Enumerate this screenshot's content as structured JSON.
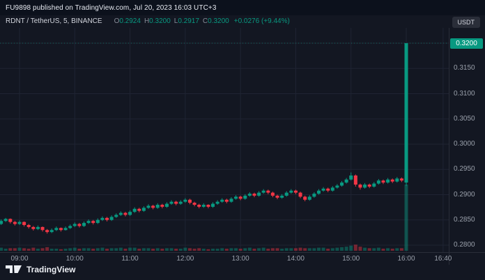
{
  "attribution": {
    "text": "FU9898 published on TradingView.com, Jul 20, 2023 16:03 UTC+3"
  },
  "legend": {
    "symbol": "RDNT / TetherUS, 5, BINANCE",
    "o_label": "O",
    "o": "0.2924",
    "h_label": "H",
    "h": "0.3200",
    "l_label": "L",
    "l": "0.2917",
    "c_label": "C",
    "c": "0.3200",
    "change": "+0.0276 (+9.44%)"
  },
  "price_axis": {
    "currency": "USDT",
    "ticks": [
      "0.3200",
      "0.3150",
      "0.3100",
      "0.3050",
      "0.3000",
      "0.2950",
      "0.2900",
      "0.2850",
      "0.2800"
    ],
    "last_price": "0.3200"
  },
  "time_axis": {
    "ticks": [
      "09:00",
      "10:00",
      "11:00",
      "12:00",
      "13:00",
      "14:00",
      "15:00",
      "16:00",
      "16:40"
    ]
  },
  "footer": {
    "logo_text": "TradingView"
  },
  "colors": {
    "up": "#089981",
    "down": "#f23645",
    "background": "#131722",
    "grid": "#1f2433",
    "axis_text": "#9aa0ab",
    "last_price_bg": "#089981",
    "badge_bg": "#2a2e39",
    "vol_up": "rgba(8,153,129,0.45)",
    "vol_down": "rgba(242,54,69,0.45)"
  },
  "chart_data": {
    "type": "candlestick",
    "title": "RDNT / TetherUS, 5, BINANCE",
    "exchange": "BINANCE",
    "interval_minutes": 5,
    "quote_currency": "USDT",
    "x_range": [
      "08:40",
      "16:40"
    ],
    "y_range": [
      0.2786,
      0.323
    ],
    "price_gridlines": [
      0.32,
      0.315,
      0.31,
      0.305,
      0.3,
      0.295,
      0.29,
      0.285,
      0.28
    ],
    "time_gridlines": [
      "09:00",
      "10:00",
      "11:00",
      "12:00",
      "13:00",
      "14:00",
      "15:00",
      "16:00",
      "16:40"
    ],
    "last_price": 0.32,
    "last_candle": {
      "o": 0.2924,
      "h": 0.32,
      "l": 0.2917,
      "c": 0.32,
      "change": 0.0276,
      "change_pct": 9.44
    },
    "candles": [
      [
        "08:40",
        0.2842,
        0.2851,
        0.284,
        0.2848,
        6
      ],
      [
        "08:45",
        0.2848,
        0.2854,
        0.2846,
        0.2852,
        4
      ],
      [
        "08:50",
        0.2852,
        0.2853,
        0.2843,
        0.2846,
        5
      ],
      [
        "08:55",
        0.2846,
        0.2848,
        0.2839,
        0.2842,
        5
      ],
      [
        "09:00",
        0.2842,
        0.2849,
        0.284,
        0.2846,
        6
      ],
      [
        "09:05",
        0.2846,
        0.2847,
        0.2837,
        0.284,
        5
      ],
      [
        "09:10",
        0.284,
        0.2842,
        0.2833,
        0.2836,
        4
      ],
      [
        "09:15",
        0.2836,
        0.2838,
        0.2829,
        0.2832,
        6
      ],
      [
        "09:20",
        0.2832,
        0.2839,
        0.283,
        0.2836,
        4
      ],
      [
        "09:25",
        0.2836,
        0.2837,
        0.2827,
        0.283,
        5
      ],
      [
        "09:30",
        0.283,
        0.2832,
        0.2823,
        0.2826,
        7
      ],
      [
        "09:35",
        0.2826,
        0.2833,
        0.2824,
        0.283,
        4
      ],
      [
        "09:40",
        0.283,
        0.2837,
        0.2828,
        0.2834,
        4
      ],
      [
        "09:45",
        0.2834,
        0.2835,
        0.2827,
        0.283,
        3
      ],
      [
        "09:50",
        0.283,
        0.2837,
        0.2829,
        0.2834,
        4
      ],
      [
        "09:55",
        0.2834,
        0.2841,
        0.2832,
        0.2838,
        5
      ],
      [
        "10:00",
        0.2838,
        0.2845,
        0.2836,
        0.2842,
        6
      ],
      [
        "10:05",
        0.2842,
        0.2844,
        0.2835,
        0.2838,
        4
      ],
      [
        "10:10",
        0.2838,
        0.2847,
        0.2836,
        0.2844,
        5
      ],
      [
        "10:15",
        0.2844,
        0.2851,
        0.2842,
        0.2848,
        5
      ],
      [
        "10:20",
        0.2848,
        0.285,
        0.2841,
        0.2844,
        4
      ],
      [
        "10:25",
        0.2844,
        0.2853,
        0.2842,
        0.285,
        5
      ],
      [
        "10:30",
        0.285,
        0.2857,
        0.2848,
        0.2854,
        6
      ],
      [
        "10:35",
        0.2854,
        0.2856,
        0.2847,
        0.285,
        4
      ],
      [
        "10:40",
        0.285,
        0.2859,
        0.2848,
        0.2856,
        5
      ],
      [
        "10:45",
        0.2856,
        0.2863,
        0.2854,
        0.286,
        5
      ],
      [
        "10:50",
        0.286,
        0.2867,
        0.2858,
        0.2864,
        6
      ],
      [
        "10:55",
        0.2864,
        0.2866,
        0.2857,
        0.286,
        4
      ],
      [
        "11:00",
        0.286,
        0.2869,
        0.2858,
        0.2866,
        6
      ],
      [
        "11:05",
        0.2866,
        0.2875,
        0.2864,
        0.2872,
        6
      ],
      [
        "11:10",
        0.2872,
        0.2874,
        0.2865,
        0.2868,
        4
      ],
      [
        "11:15",
        0.2868,
        0.2877,
        0.2866,
        0.2874,
        5
      ],
      [
        "11:20",
        0.2874,
        0.2881,
        0.2872,
        0.2878,
        5
      ],
      [
        "11:25",
        0.2878,
        0.288,
        0.2871,
        0.2874,
        4
      ],
      [
        "11:30",
        0.2874,
        0.2883,
        0.2872,
        0.288,
        5
      ],
      [
        "11:35",
        0.288,
        0.2882,
        0.2873,
        0.2876,
        4
      ],
      [
        "11:40",
        0.2876,
        0.2885,
        0.2874,
        0.2882,
        5
      ],
      [
        "11:45",
        0.2882,
        0.2889,
        0.288,
        0.2886,
        5
      ],
      [
        "11:50",
        0.2886,
        0.2888,
        0.2879,
        0.2882,
        4
      ],
      [
        "11:55",
        0.2882,
        0.2889,
        0.288,
        0.2886,
        4
      ],
      [
        "12:00",
        0.2886,
        0.2893,
        0.2884,
        0.289,
        6
      ],
      [
        "12:05",
        0.289,
        0.2892,
        0.2881,
        0.2884,
        5
      ],
      [
        "12:10",
        0.2884,
        0.2886,
        0.2877,
        0.288,
        4
      ],
      [
        "12:15",
        0.288,
        0.2882,
        0.2873,
        0.2876,
        5
      ],
      [
        "12:20",
        0.2876,
        0.2883,
        0.2874,
        0.288,
        4
      ],
      [
        "12:25",
        0.288,
        0.2881,
        0.2873,
        0.2876,
        3
      ],
      [
        "12:30",
        0.2876,
        0.2885,
        0.2874,
        0.2882,
        4
      ],
      [
        "12:35",
        0.2882,
        0.2889,
        0.288,
        0.2886,
        4
      ],
      [
        "12:40",
        0.2886,
        0.2893,
        0.2884,
        0.289,
        5
      ],
      [
        "12:45",
        0.289,
        0.2892,
        0.2883,
        0.2886,
        4
      ],
      [
        "12:50",
        0.2886,
        0.2895,
        0.2884,
        0.2892,
        5
      ],
      [
        "12:55",
        0.2892,
        0.2899,
        0.289,
        0.2896,
        5
      ],
      [
        "13:00",
        0.2896,
        0.2898,
        0.2889,
        0.2892,
        4
      ],
      [
        "13:05",
        0.2892,
        0.2901,
        0.289,
        0.2898,
        5
      ],
      [
        "13:10",
        0.2898,
        0.2905,
        0.2896,
        0.2902,
        6
      ],
      [
        "13:15",
        0.2902,
        0.2904,
        0.2895,
        0.2898,
        4
      ],
      [
        "13:20",
        0.2898,
        0.2907,
        0.2896,
        0.2904,
        5
      ],
      [
        "13:25",
        0.2904,
        0.2911,
        0.2902,
        0.2908,
        6
      ],
      [
        "13:30",
        0.2908,
        0.291,
        0.2901,
        0.2904,
        4
      ],
      [
        "13:35",
        0.2904,
        0.2906,
        0.2895,
        0.2898,
        5
      ],
      [
        "13:40",
        0.2898,
        0.29,
        0.2891,
        0.2894,
        5
      ],
      [
        "13:45",
        0.2894,
        0.2901,
        0.2892,
        0.2898,
        4
      ],
      [
        "13:50",
        0.2898,
        0.2907,
        0.2896,
        0.2904,
        5
      ],
      [
        "13:55",
        0.2904,
        0.2911,
        0.2902,
        0.2908,
        5
      ],
      [
        "14:00",
        0.2908,
        0.291,
        0.2901,
        0.2904,
        5
      ],
      [
        "14:05",
        0.2904,
        0.2906,
        0.2893,
        0.2896,
        6
      ],
      [
        "14:10",
        0.2896,
        0.2898,
        0.2887,
        0.289,
        5
      ],
      [
        "14:15",
        0.289,
        0.2899,
        0.2888,
        0.2896,
        5
      ],
      [
        "14:20",
        0.2896,
        0.2905,
        0.2894,
        0.2902,
        5
      ],
      [
        "14:25",
        0.2902,
        0.2911,
        0.29,
        0.2908,
        6
      ],
      [
        "14:30",
        0.2908,
        0.2915,
        0.2906,
        0.2912,
        6
      ],
      [
        "14:35",
        0.2912,
        0.2914,
        0.2905,
        0.2908,
        4
      ],
      [
        "14:40",
        0.2908,
        0.2917,
        0.2906,
        0.2914,
        5
      ],
      [
        "14:45",
        0.2914,
        0.2921,
        0.2912,
        0.2918,
        6
      ],
      [
        "14:50",
        0.2918,
        0.2927,
        0.2916,
        0.2924,
        7
      ],
      [
        "14:55",
        0.2924,
        0.2933,
        0.2922,
        0.293,
        8
      ],
      [
        "15:00",
        0.293,
        0.2944,
        0.2928,
        0.2938,
        10
      ],
      [
        "15:05",
        0.2938,
        0.294,
        0.2916,
        0.292,
        12
      ],
      [
        "15:10",
        0.292,
        0.2922,
        0.291,
        0.2914,
        8
      ],
      [
        "15:15",
        0.2914,
        0.2923,
        0.2912,
        0.292,
        6
      ],
      [
        "15:20",
        0.292,
        0.2922,
        0.2913,
        0.2916,
        5
      ],
      [
        "15:25",
        0.2916,
        0.2925,
        0.2914,
        0.2922,
        5
      ],
      [
        "15:30",
        0.2922,
        0.2931,
        0.292,
        0.2928,
        6
      ],
      [
        "15:35",
        0.2928,
        0.293,
        0.2921,
        0.2924,
        4
      ],
      [
        "15:40",
        0.2924,
        0.2933,
        0.2922,
        0.293,
        5
      ],
      [
        "15:45",
        0.293,
        0.2932,
        0.2923,
        0.2926,
        4
      ],
      [
        "15:50",
        0.2926,
        0.2935,
        0.2924,
        0.2932,
        5
      ],
      [
        "15:55",
        0.2932,
        0.2934,
        0.2925,
        0.2928,
        5
      ],
      [
        "16:00",
        0.2924,
        0.32,
        0.2917,
        0.32,
        130
      ]
    ]
  }
}
